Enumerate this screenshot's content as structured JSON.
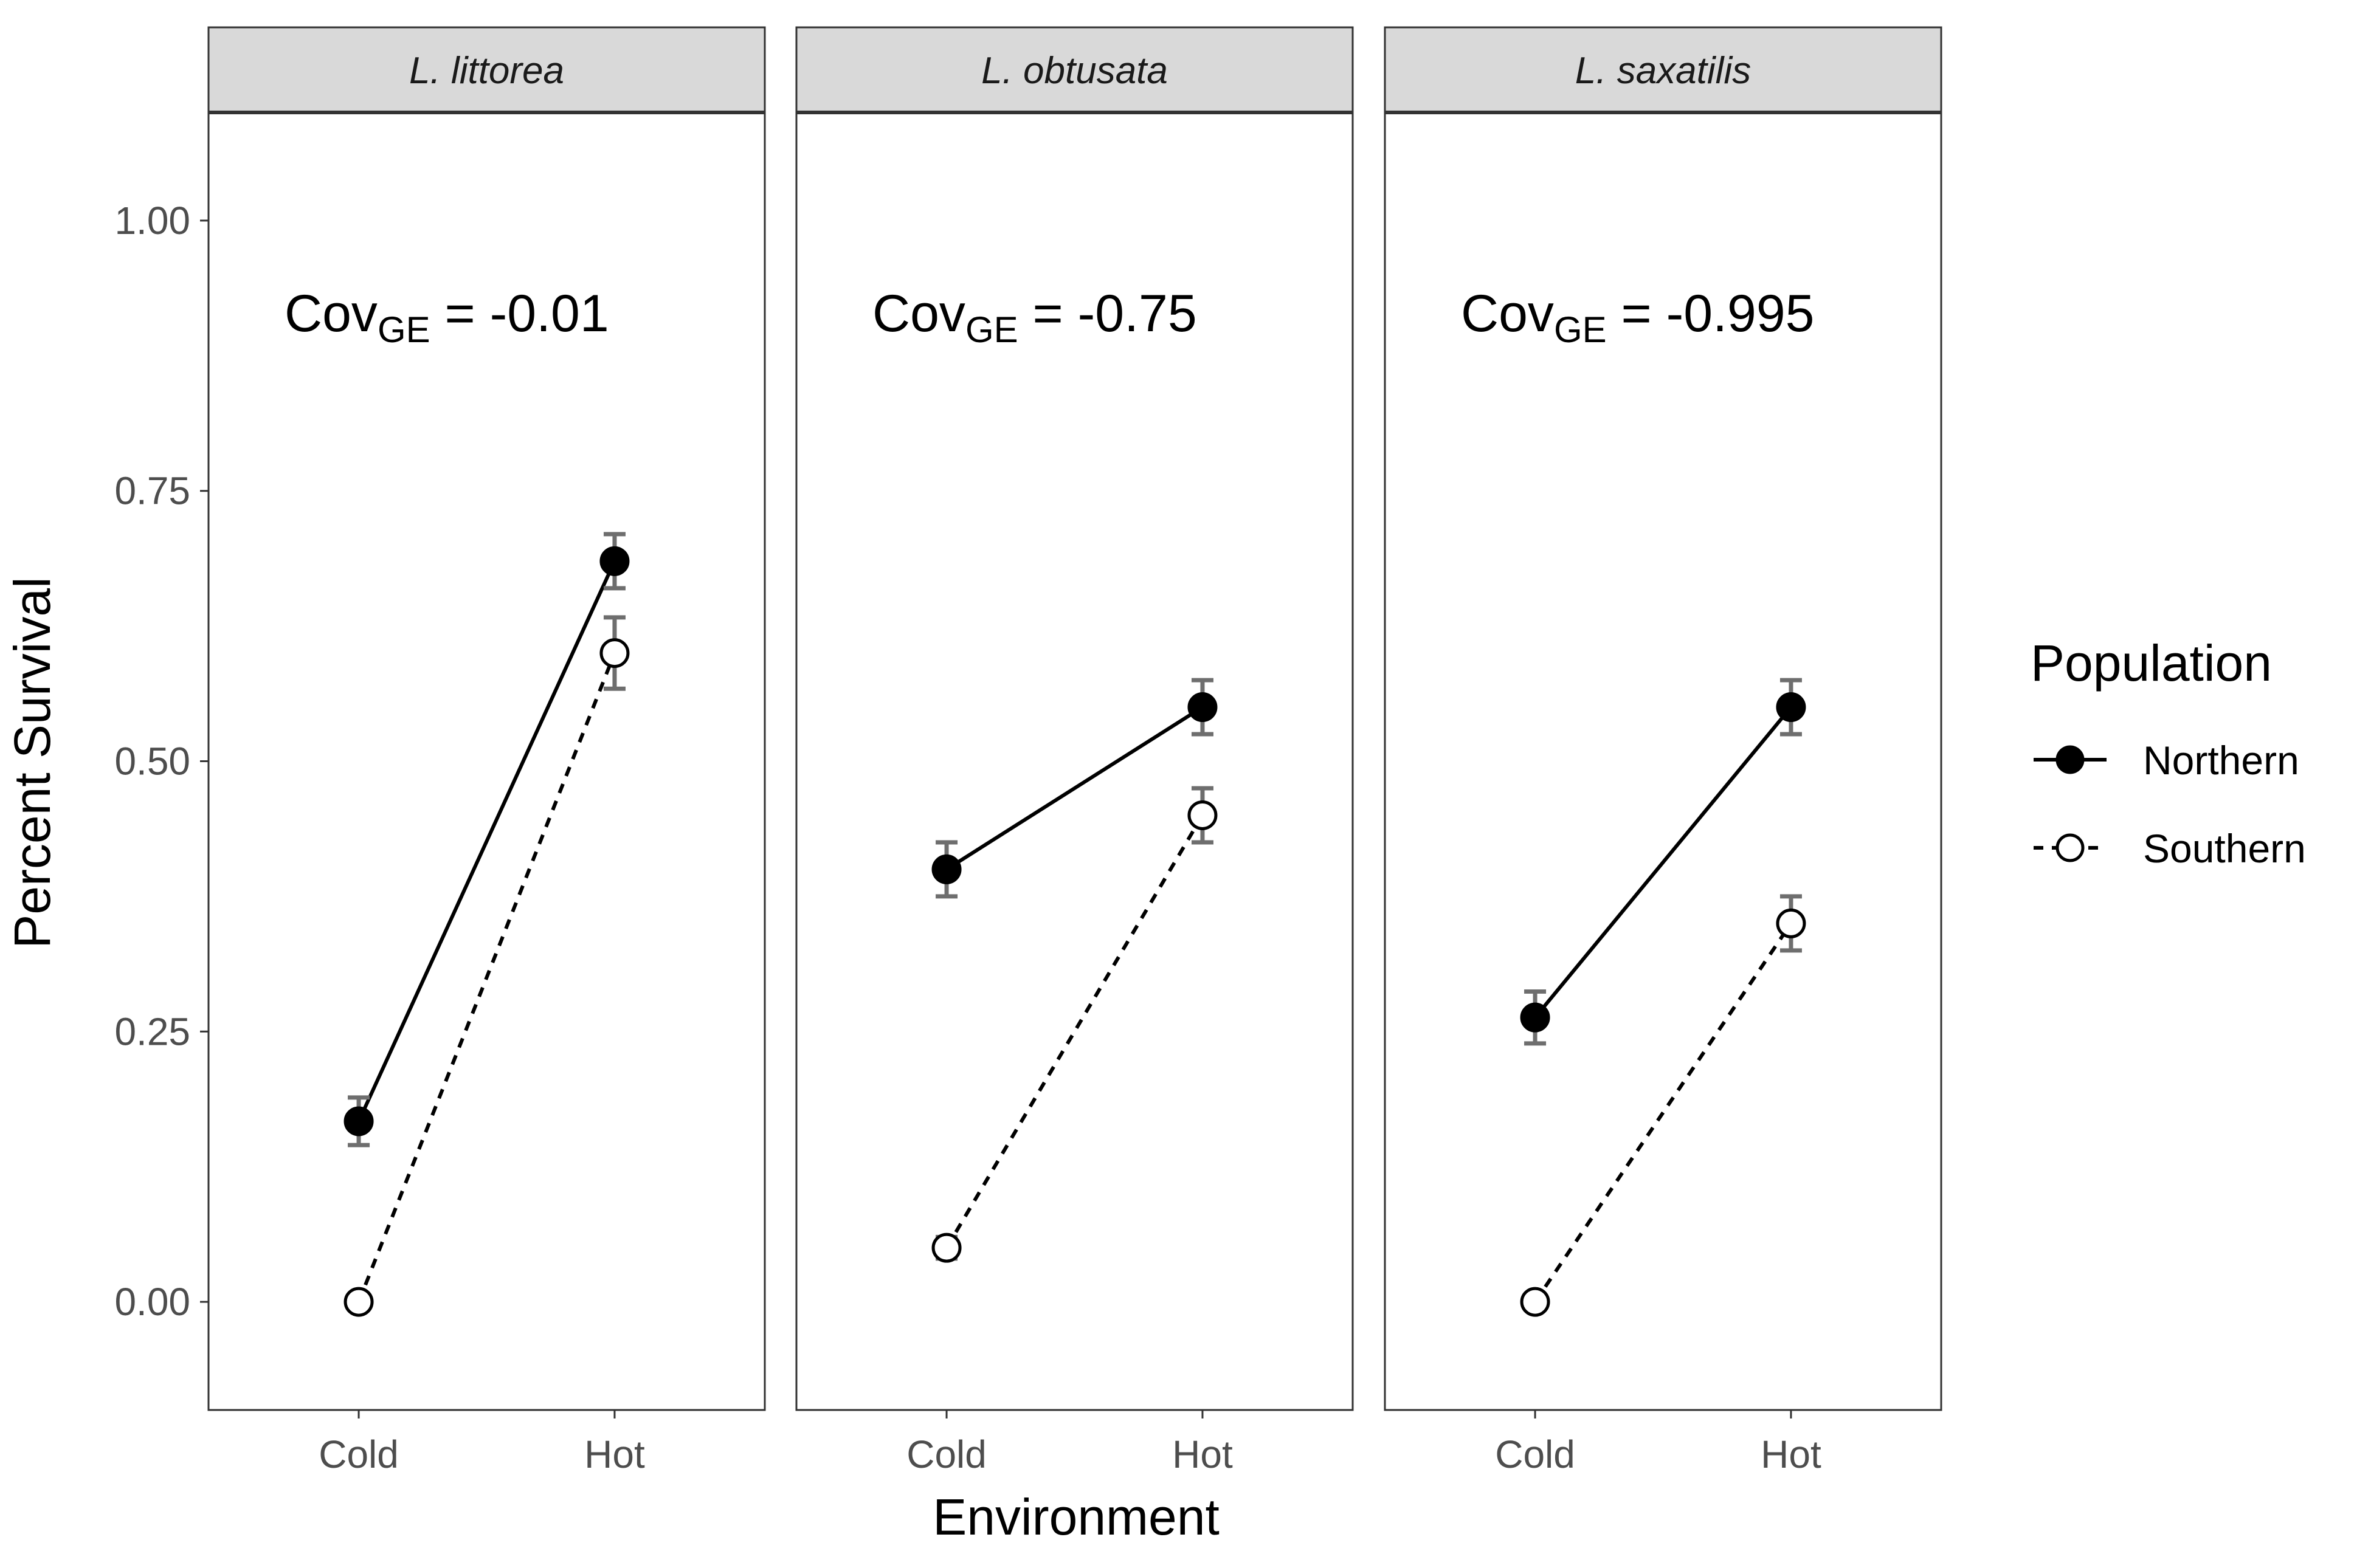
{
  "chart_data": {
    "type": "line",
    "ylabel": "Percent Survival",
    "xlabel": "Environment",
    "categories": [
      "Cold",
      "Hot"
    ],
    "ylim": [
      -0.1,
      1.1
    ],
    "y_ticks": [
      "0.00",
      "0.25",
      "0.50",
      "0.75",
      "1.00"
    ],
    "y_tick_values": [
      0,
      0.25,
      0.5,
      0.75,
      1.0
    ],
    "grid": false,
    "legend": {
      "title": "Population",
      "position": "right",
      "items": [
        {
          "label": "Northern",
          "marker": "filled-circle",
          "line": "solid"
        },
        {
          "label": "Southern",
          "marker": "open-circle",
          "line": "dashed"
        }
      ]
    },
    "annotation_prefix": "Cov",
    "annotation_subscript": "GE",
    "panels": [
      {
        "title": "L. littorea",
        "annotation_value": " = -0.01",
        "series": [
          {
            "name": "Northern",
            "values": [
              0.167,
              0.685
            ],
            "err_low": [
              0.145,
              0.66
            ],
            "err_high": [
              0.189,
              0.71
            ]
          },
          {
            "name": "Southern",
            "values": [
              0.0,
              0.6
            ],
            "err_low": [
              0.0,
              0.567
            ],
            "err_high": [
              0.0,
              0.633
            ]
          }
        ]
      },
      {
        "title": "L. obtusata",
        "annotation_value": " = -0.75",
        "series": [
          {
            "name": "Northern",
            "values": [
              0.4,
              0.55
            ],
            "err_low": [
              0.375,
              0.525
            ],
            "err_high": [
              0.425,
              0.575
            ]
          },
          {
            "name": "Southern",
            "values": [
              0.05,
              0.45
            ],
            "err_low": [
              0.04,
              0.425
            ],
            "err_high": [
              0.06,
              0.475
            ]
          }
        ]
      },
      {
        "title": "L. saxatilis",
        "annotation_value": " = -0.995",
        "series": [
          {
            "name": "Northern",
            "values": [
              0.263,
              0.55
            ],
            "err_low": [
              0.239,
              0.525
            ],
            "err_high": [
              0.287,
              0.575
            ]
          },
          {
            "name": "Southern",
            "values": [
              0.0,
              0.35
            ],
            "err_low": [
              0.0,
              0.325
            ],
            "err_high": [
              0.0,
              0.375
            ]
          }
        ]
      }
    ]
  }
}
